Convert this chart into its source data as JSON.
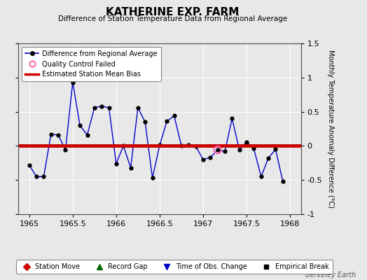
{
  "title": "KATHERINE EXP. FARM",
  "subtitle": "Difference of Station Temperature Data from Regional Average",
  "ylabel": "Monthly Temperature Anomaly Difference (°C)",
  "background_color": "#e8e8e8",
  "plot_bg_color": "#e8e8e8",
  "xlim": [
    1964.875,
    1968.125
  ],
  "ylim": [
    -1.0,
    1.5
  ],
  "bias_value": 0.0,
  "x_data": [
    1965.0,
    1965.083,
    1965.167,
    1965.25,
    1965.333,
    1965.417,
    1965.5,
    1965.583,
    1965.667,
    1965.75,
    1965.833,
    1965.917,
    1966.0,
    1966.083,
    1966.167,
    1966.25,
    1966.333,
    1966.417,
    1966.5,
    1966.583,
    1966.667,
    1966.75,
    1966.833,
    1966.917,
    1967.0,
    1967.083,
    1967.167,
    1967.25,
    1967.333,
    1967.417,
    1967.5,
    1967.583,
    1967.667,
    1967.75,
    1967.833,
    1967.917
  ],
  "y_data": [
    -0.28,
    -0.45,
    -0.45,
    0.17,
    0.16,
    -0.06,
    0.93,
    0.3,
    0.16,
    0.56,
    0.58,
    0.56,
    -0.26,
    0.0,
    -0.32,
    0.56,
    0.35,
    -0.47,
    0.01,
    0.36,
    0.44,
    0.0,
    0.01,
    -0.01,
    -0.2,
    -0.17,
    -0.06,
    -0.08,
    0.4,
    -0.06,
    0.06,
    -0.04,
    -0.45,
    -0.18,
    -0.05,
    -0.52
  ],
  "qc_failed_x": [
    1967.167
  ],
  "qc_failed_y": [
    -0.06
  ],
  "line_color": "#0000cc",
  "marker_color": "#000000",
  "bias_color": "#cc0000",
  "qc_color": "#ff69b4",
  "xticks": [
    1965,
    1965.5,
    1966,
    1966.5,
    1967,
    1967.5,
    1968
  ],
  "xtick_labels": [
    "1965",
    "1965.5",
    "1966",
    "1966.5",
    "1967",
    "1967.5",
    "1968"
  ],
  "yticks": [
    -1.0,
    -0.5,
    0.0,
    0.5,
    1.0,
    1.5
  ],
  "ytick_labels": [
    "-1",
    "-0.5",
    "0",
    "0.5",
    "1",
    "1.5"
  ],
  "grid_color": "#ffffff",
  "watermark": "Berkeley Earth",
  "leg1_label0": "Difference from Regional Average",
  "leg1_label1": "Quality Control Failed",
  "leg1_label2": "Estimated Station Mean Bias",
  "leg2_label0": "Station Move",
  "leg2_label1": "Record Gap",
  "leg2_label2": "Time of Obs. Change",
  "leg2_label3": "Empirical Break",
  "leg2_color0": "#cc0000",
  "leg2_color1": "#006600",
  "leg2_color2": "#0000cc",
  "leg2_color3": "#000000"
}
